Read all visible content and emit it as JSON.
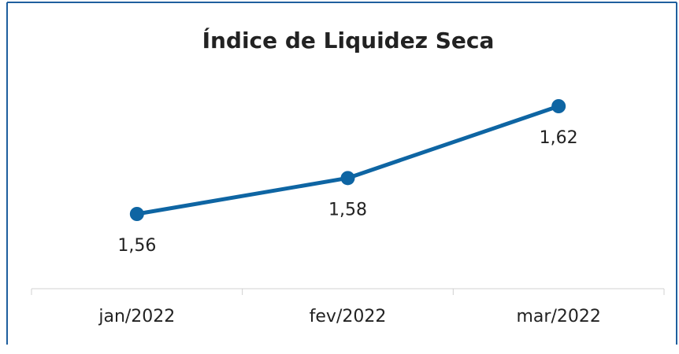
{
  "chart_data": {
    "type": "line",
    "title": "Índice de Liquidez Seca",
    "categories": [
      "jan/2022",
      "fev/2022",
      "mar/2022"
    ],
    "series": [
      {
        "name": "Índice de Liquidez Seca",
        "color": "#0e65a3",
        "values": [
          1.56,
          1.58,
          1.62
        ],
        "value_labels": [
          "1,56",
          "1,58",
          "1,62"
        ]
      }
    ]
  }
}
